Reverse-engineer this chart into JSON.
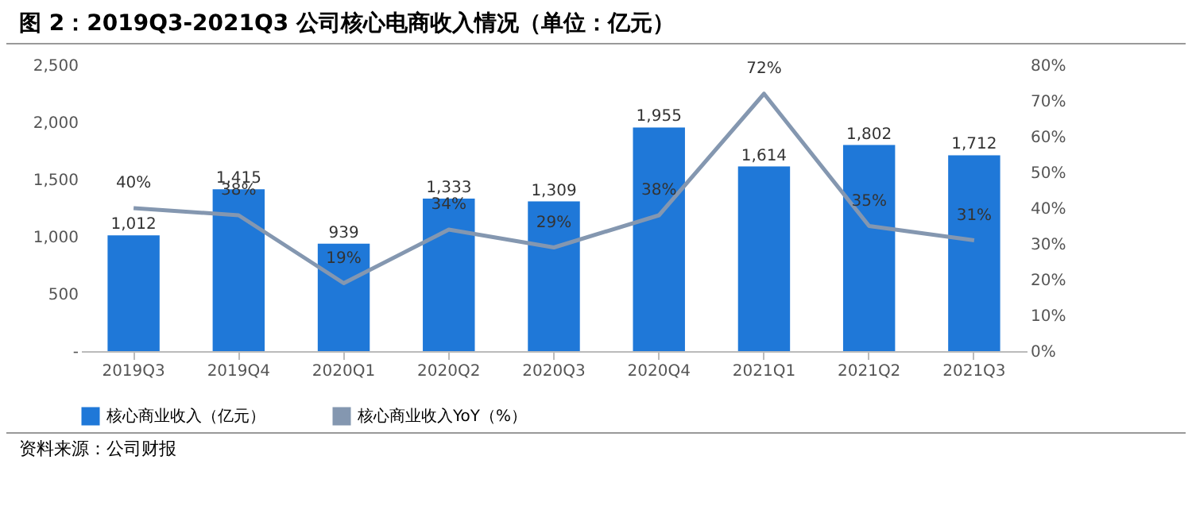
{
  "chart_data": {
    "type": "bar",
    "title": "图 2：2019Q3-2021Q3 公司核心电商收入情况（单位：亿元）",
    "categories": [
      "2019Q3",
      "2019Q4",
      "2020Q1",
      "2020Q2",
      "2020Q3",
      "2020Q4",
      "2021Q1",
      "2021Q2",
      "2021Q3"
    ],
    "series": [
      {
        "name": "核心商业收入（亿元）",
        "color": "#1f78d8",
        "values": [
          1012,
          1415,
          939,
          1333,
          1309,
          1955,
          1614,
          1802,
          1712
        ],
        "value_labels": [
          "1,012",
          "1,415",
          "939",
          "1,333",
          "1,309",
          "1,955",
          "1,614",
          "1,802",
          "1,712"
        ]
      },
      {
        "name": "核心商业收入YoY（%）",
        "type": "line",
        "axis": "y2",
        "color": "#8497b0",
        "values": [
          40,
          38,
          19,
          34,
          29,
          38,
          72,
          35,
          31
        ],
        "value_labels": [
          "40%",
          "38%",
          "19%",
          "34%",
          "29%",
          "38%",
          "72%",
          "35%",
          "31%"
        ]
      }
    ],
    "ylim": [
      0,
      2500
    ],
    "yticks": [
      {
        "value": 0,
        "label": "-"
      },
      500,
      {
        "value": 1000,
        "label": "1,000"
      },
      {
        "value": 1500,
        "label": "1,500"
      },
      {
        "value": 2000,
        "label": "2,000"
      },
      {
        "value": 2500,
        "label": "2,500"
      }
    ],
    "y2lim": [
      0,
      80
    ],
    "y2ticks": [
      {
        "value": 0,
        "label": "0%"
      },
      {
        "value": 10,
        "label": "10%"
      },
      {
        "value": 20,
        "label": "20%"
      },
      {
        "value": 30,
        "label": "30%"
      },
      {
        "value": 40,
        "label": "40%"
      },
      {
        "value": 50,
        "label": "50%"
      },
      {
        "value": 60,
        "label": "60%"
      },
      {
        "value": 70,
        "label": "70%"
      },
      {
        "value": 80,
        "label": "80%"
      }
    ],
    "legend": "bottom",
    "marker": "none",
    "annotations": [
      "资料来源：公司财报"
    ]
  }
}
